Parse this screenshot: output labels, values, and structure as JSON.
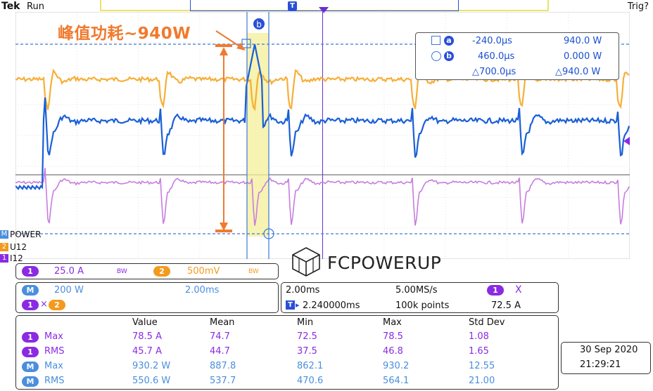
{
  "topbar": {
    "brand": "Tek",
    "state": "Run",
    "trigger_status": "Trig?",
    "record_marker": "T"
  },
  "annotation": "峰值功耗~940W",
  "channels": {
    "math": {
      "badge": "M",
      "label": "POWER"
    },
    "ch2": {
      "badge": "2",
      "label": "U12"
    },
    "ch1": {
      "badge": "1",
      "label": "I12"
    }
  },
  "cursors": {
    "a_badge": "a",
    "b_badge": "b",
    "b_marker": "b",
    "a_time": "-240.0µs",
    "a_value": "940.0 W",
    "b_time": "460.0µs",
    "b_value": "0.000 W",
    "delta_time": "△700.0µs",
    "delta_value": "△940.0 W"
  },
  "vertical": {
    "ch1_badge": "1",
    "ch1_scale": "25.0 A",
    "ch1_bw": "BW",
    "ch2_badge": "2",
    "ch2_scale": "500mV",
    "ch2_bw": "BW",
    "math_badge": "M",
    "math_scale": "200 W",
    "math_time": "2.00ms",
    "math_def_a": "1",
    "math_def_op": "×",
    "math_def_b": "2"
  },
  "horizontal": {
    "scale": "2.00ms",
    "sample_rate": "5.00MS/s",
    "trigger_src": "1",
    "trigger_icon": "X",
    "position": "2.240000ms",
    "record_length": "100k points",
    "trigger_level": "72.5 A",
    "pos_badge": "T"
  },
  "measurements": {
    "headers": [
      "Value",
      "Mean",
      "Min",
      "Max",
      "Std Dev"
    ],
    "rows": [
      {
        "src": "1",
        "name": "Max",
        "values": [
          "78.5 A",
          "74.7",
          "72.5",
          "78.5",
          "1.08"
        ],
        "color": "#8a2be2"
      },
      {
        "src": "1",
        "name": "RMS",
        "values": [
          "45.7 A",
          "44.7",
          "37.5",
          "46.8",
          "1.65"
        ],
        "color": "#8a2be2"
      },
      {
        "src": "M",
        "name": "Max",
        "values": [
          "930.2 W",
          "887.8",
          "862.1",
          "930.2",
          "12.55"
        ],
        "color": "#4a8fdc"
      },
      {
        "src": "M",
        "name": "RMS",
        "values": [
          "550.6 W",
          "537.7",
          "470.6",
          "564.1",
          "21.00"
        ],
        "color": "#4a8fdc"
      }
    ]
  },
  "datetime": {
    "date": "30 Sep  2020",
    "time": "21:29:21"
  },
  "watermark": "FCPOWERUP",
  "colors": {
    "ch1": "#c77dde",
    "ch2": "#f5a623",
    "math": "#1a5fd6",
    "cursor": "#3c78d8",
    "annotation": "#f07a2e"
  }
}
